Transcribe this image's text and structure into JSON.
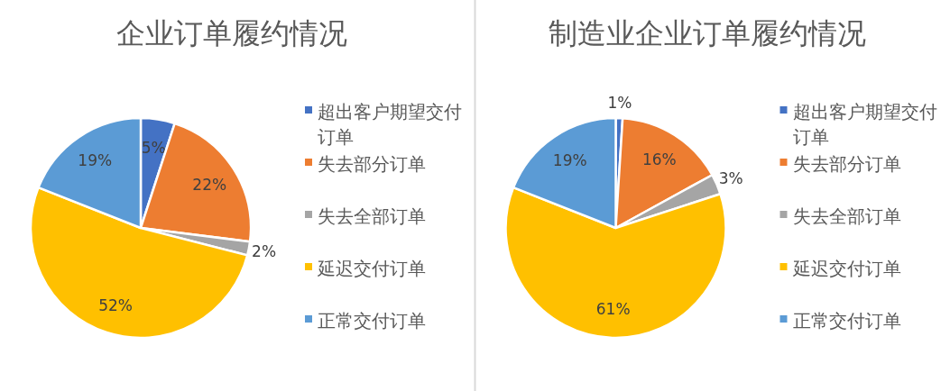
{
  "chart_data": [
    {
      "type": "pie",
      "title": "企业订单履约情况",
      "categories": [
        "超出客户期望交付订单",
        "失去部分订单",
        "失去全部订单",
        "延迟交付订单",
        "正常交付订单"
      ],
      "values": [
        5,
        22,
        2,
        52,
        19
      ],
      "value_labels": [
        "5%",
        "22%",
        "2%",
        "52%",
        "19%"
      ],
      "colors": [
        "#4472c4",
        "#ed7d31",
        "#a5a5a5",
        "#ffc000",
        "#5b9bd5"
      ],
      "legend": "right"
    },
    {
      "type": "pie",
      "title": "制造业企业订单履约情况",
      "categories": [
        "超出客户期望交付订单",
        "失去部分订单",
        "失去全部订单",
        "延迟交付订单",
        "正常交付订单"
      ],
      "values": [
        1,
        16,
        3,
        61,
        19
      ],
      "value_labels": [
        "1%",
        "16%",
        "3%",
        "61%",
        "19%"
      ],
      "colors": [
        "#4472c4",
        "#ed7d31",
        "#a5a5a5",
        "#ffc000",
        "#5b9bd5"
      ],
      "legend": "right"
    }
  ]
}
